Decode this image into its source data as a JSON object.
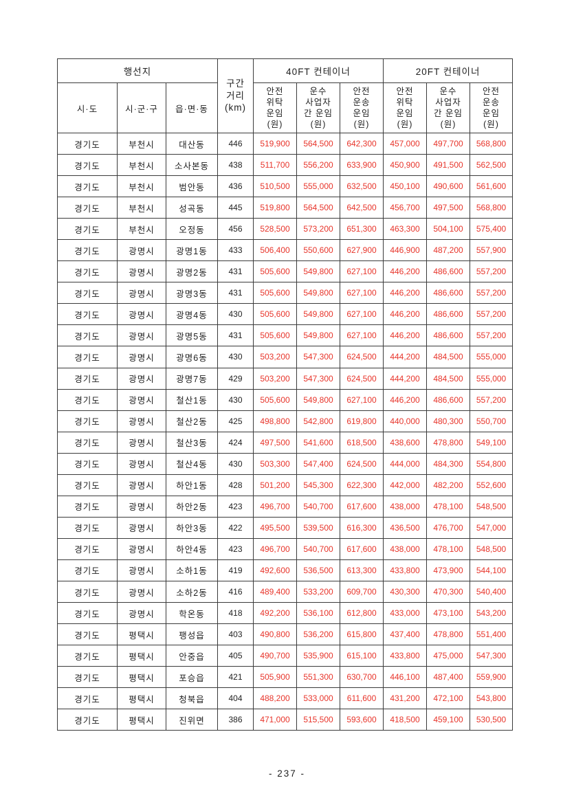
{
  "colors": {
    "fare_text": "#e8342a",
    "border": "#3a3a3a",
    "body_text": "#1f1f1f"
  },
  "footer": {
    "page_number": "- 237 -"
  },
  "table": {
    "header": {
      "destination": "행선지",
      "sido": "시·도",
      "sigungu": "시·군·구",
      "eupmyeondong": "읍·면·동",
      "distance": "구간\n거리\n(km)",
      "container_40ft": "40FT 컨테이너",
      "container_20ft": "20FT 컨테이너",
      "fare_consign": "안전\n위탁\n운임\n(원)",
      "fare_carrier": "운수\n사업자\n간 운임\n(원)",
      "fare_transport": "안전\n운송\n운임\n(원)"
    },
    "rows": [
      [
        "경기도",
        "부천시",
        "대산동",
        "446",
        "519,900",
        "564,500",
        "642,300",
        "457,000",
        "497,700",
        "568,800"
      ],
      [
        "경기도",
        "부천시",
        "소사본동",
        "438",
        "511,700",
        "556,200",
        "633,900",
        "450,900",
        "491,500",
        "562,500"
      ],
      [
        "경기도",
        "부천시",
        "범안동",
        "436",
        "510,500",
        "555,000",
        "632,500",
        "450,100",
        "490,600",
        "561,600"
      ],
      [
        "경기도",
        "부천시",
        "성곡동",
        "445",
        "519,800",
        "564,500",
        "642,500",
        "456,700",
        "497,500",
        "568,800"
      ],
      [
        "경기도",
        "부천시",
        "오정동",
        "456",
        "528,500",
        "573,200",
        "651,300",
        "463,300",
        "504,100",
        "575,400"
      ],
      [
        "경기도",
        "광명시",
        "광명1동",
        "433",
        "506,400",
        "550,600",
        "627,900",
        "446,900",
        "487,200",
        "557,900"
      ],
      [
        "경기도",
        "광명시",
        "광명2동",
        "431",
        "505,600",
        "549,800",
        "627,100",
        "446,200",
        "486,600",
        "557,200"
      ],
      [
        "경기도",
        "광명시",
        "광명3동",
        "431",
        "505,600",
        "549,800",
        "627,100",
        "446,200",
        "486,600",
        "557,200"
      ],
      [
        "경기도",
        "광명시",
        "광명4동",
        "430",
        "505,600",
        "549,800",
        "627,100",
        "446,200",
        "486,600",
        "557,200"
      ],
      [
        "경기도",
        "광명시",
        "광명5동",
        "431",
        "505,600",
        "549,800",
        "627,100",
        "446,200",
        "486,600",
        "557,200"
      ],
      [
        "경기도",
        "광명시",
        "광명6동",
        "430",
        "503,200",
        "547,300",
        "624,500",
        "444,200",
        "484,500",
        "555,000"
      ],
      [
        "경기도",
        "광명시",
        "광명7동",
        "429",
        "503,200",
        "547,300",
        "624,500",
        "444,200",
        "484,500",
        "555,000"
      ],
      [
        "경기도",
        "광명시",
        "철산1동",
        "430",
        "505,600",
        "549,800",
        "627,100",
        "446,200",
        "486,600",
        "557,200"
      ],
      [
        "경기도",
        "광명시",
        "철산2동",
        "425",
        "498,800",
        "542,800",
        "619,800",
        "440,000",
        "480,300",
        "550,700"
      ],
      [
        "경기도",
        "광명시",
        "철산3동",
        "424",
        "497,500",
        "541,600",
        "618,500",
        "438,600",
        "478,800",
        "549,100"
      ],
      [
        "경기도",
        "광명시",
        "철산4동",
        "430",
        "503,300",
        "547,400",
        "624,500",
        "444,000",
        "484,300",
        "554,800"
      ],
      [
        "경기도",
        "광명시",
        "하안1동",
        "428",
        "501,200",
        "545,300",
        "622,300",
        "442,000",
        "482,200",
        "552,600"
      ],
      [
        "경기도",
        "광명시",
        "하안2동",
        "423",
        "496,700",
        "540,700",
        "617,600",
        "438,000",
        "478,100",
        "548,500"
      ],
      [
        "경기도",
        "광명시",
        "하안3동",
        "422",
        "495,500",
        "539,500",
        "616,300",
        "436,500",
        "476,700",
        "547,000"
      ],
      [
        "경기도",
        "광명시",
        "하안4동",
        "423",
        "496,700",
        "540,700",
        "617,600",
        "438,000",
        "478,100",
        "548,500"
      ],
      [
        "경기도",
        "광명시",
        "소하1동",
        "419",
        "492,600",
        "536,500",
        "613,300",
        "433,800",
        "473,900",
        "544,100"
      ],
      [
        "경기도",
        "광명시",
        "소하2동",
        "416",
        "489,400",
        "533,200",
        "609,700",
        "430,300",
        "470,300",
        "540,400"
      ],
      [
        "경기도",
        "광명시",
        "학온동",
        "418",
        "492,200",
        "536,100",
        "612,800",
        "433,000",
        "473,100",
        "543,200"
      ],
      [
        "경기도",
        "평택시",
        "팽성읍",
        "403",
        "490,800",
        "536,200",
        "615,800",
        "437,400",
        "478,800",
        "551,400"
      ],
      [
        "경기도",
        "평택시",
        "안중읍",
        "405",
        "490,700",
        "535,900",
        "615,100",
        "433,800",
        "475,000",
        "547,300"
      ],
      [
        "경기도",
        "평택시",
        "포승읍",
        "421",
        "505,900",
        "551,300",
        "630,700",
        "446,100",
        "487,400",
        "559,900"
      ],
      [
        "경기도",
        "평택시",
        "청북읍",
        "404",
        "488,200",
        "533,000",
        "611,600",
        "431,200",
        "472,100",
        "543,800"
      ],
      [
        "경기도",
        "평택시",
        "진위면",
        "386",
        "471,000",
        "515,500",
        "593,600",
        "418,500",
        "459,100",
        "530,500"
      ]
    ],
    "cell_names": [
      "cell-sido",
      "cell-sigungu",
      "cell-eupmyeondong",
      "cell-distance",
      "cell-fare-40ft-consign",
      "cell-fare-40ft-carrier",
      "cell-fare-40ft-transport",
      "cell-fare-20ft-consign",
      "cell-fare-20ft-carrier",
      "cell-fare-20ft-transport"
    ]
  }
}
